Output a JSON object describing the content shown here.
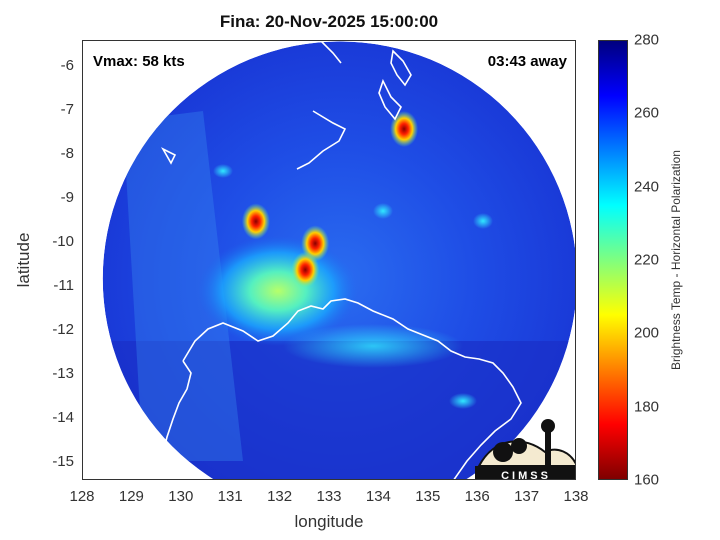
{
  "title": "Fina: 20-Nov-2025 15:00:00",
  "vmax_label": "Vmax: 58 kts",
  "time_away": "03:43 away",
  "logo": {
    "text": "CIMSS"
  },
  "colors": {
    "land_outline": "#ffffff",
    "background_field": "#1a2fd0",
    "colormap": [
      "#7f0000",
      "#ff0000",
      "#ff7f00",
      "#ffff00",
      "#7fff7f",
      "#00ffff",
      "#007fff",
      "#0000ff",
      "#00007f"
    ]
  },
  "axes": {
    "xlabel": "longitude",
    "ylabel": "latitude",
    "xlim": [
      128,
      138
    ],
    "ylim": [
      -15.4,
      -5.4
    ],
    "xticks": [
      128,
      129,
      130,
      131,
      132,
      133,
      134,
      135,
      136,
      137,
      138
    ],
    "yticks": [
      -6,
      -7,
      -8,
      -9,
      -10,
      -11,
      -12,
      -13,
      -14,
      -15
    ],
    "xtick_labels": [
      "128",
      "129",
      "130",
      "131",
      "132",
      "133",
      "134",
      "135",
      "136",
      "137",
      "138"
    ],
    "ytick_labels": [
      "-6",
      "-7",
      "-8",
      "-9",
      "-10",
      "-11",
      "-12",
      "-13",
      "-14",
      "-15"
    ]
  },
  "colorbar": {
    "label": "Brightness Temp - Horizontal Polarization",
    "range": [
      160,
      280
    ],
    "ticks": [
      280,
      260,
      240,
      220,
      200,
      180,
      160
    ],
    "tick_labels": [
      "280",
      "260",
      "240",
      "220",
      "200",
      "180",
      "160"
    ]
  },
  "map": {
    "swath_center": [
      133.2,
      -10.8
    ],
    "swath_radius_deg": 4.8,
    "cold_spots": [
      {
        "lon": 131.5,
        "lat": -9.5,
        "value": 175
      },
      {
        "lon": 132.7,
        "lat": -10.0,
        "value": 185
      },
      {
        "lon": 132.5,
        "lat": -10.6,
        "value": 195
      },
      {
        "lon": 134.5,
        "lat": -7.4,
        "value": 205
      }
    ]
  }
}
